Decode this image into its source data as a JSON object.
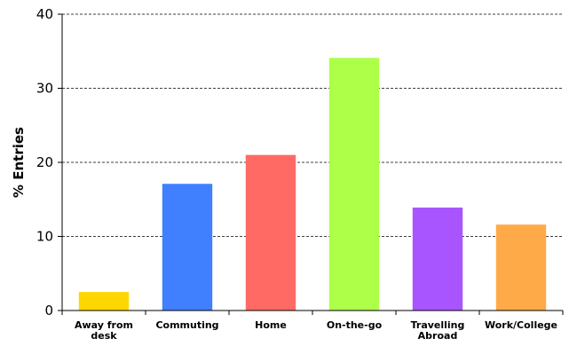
{
  "chart_data": {
    "type": "bar",
    "title": "",
    "xlabel": "",
    "ylabel": "% Entries",
    "ylim": [
      0,
      40
    ],
    "yticks": [
      0,
      10,
      20,
      30,
      40
    ],
    "grid": "horizontal dashed",
    "categories": [
      [
        "Away from",
        "desk"
      ],
      [
        "Commuting"
      ],
      [
        "Home"
      ],
      [
        "On-the-go"
      ],
      [
        "Travelling",
        "Abroad"
      ],
      [
        "Work/College"
      ]
    ],
    "values": [
      2.5,
      17.1,
      21.0,
      34.1,
      13.9,
      11.6
    ],
    "colors": [
      "#FFD700",
      "#4080FF",
      "#FF6A64",
      "#ADFF48",
      "#A855FF",
      "#FFAA48"
    ]
  }
}
